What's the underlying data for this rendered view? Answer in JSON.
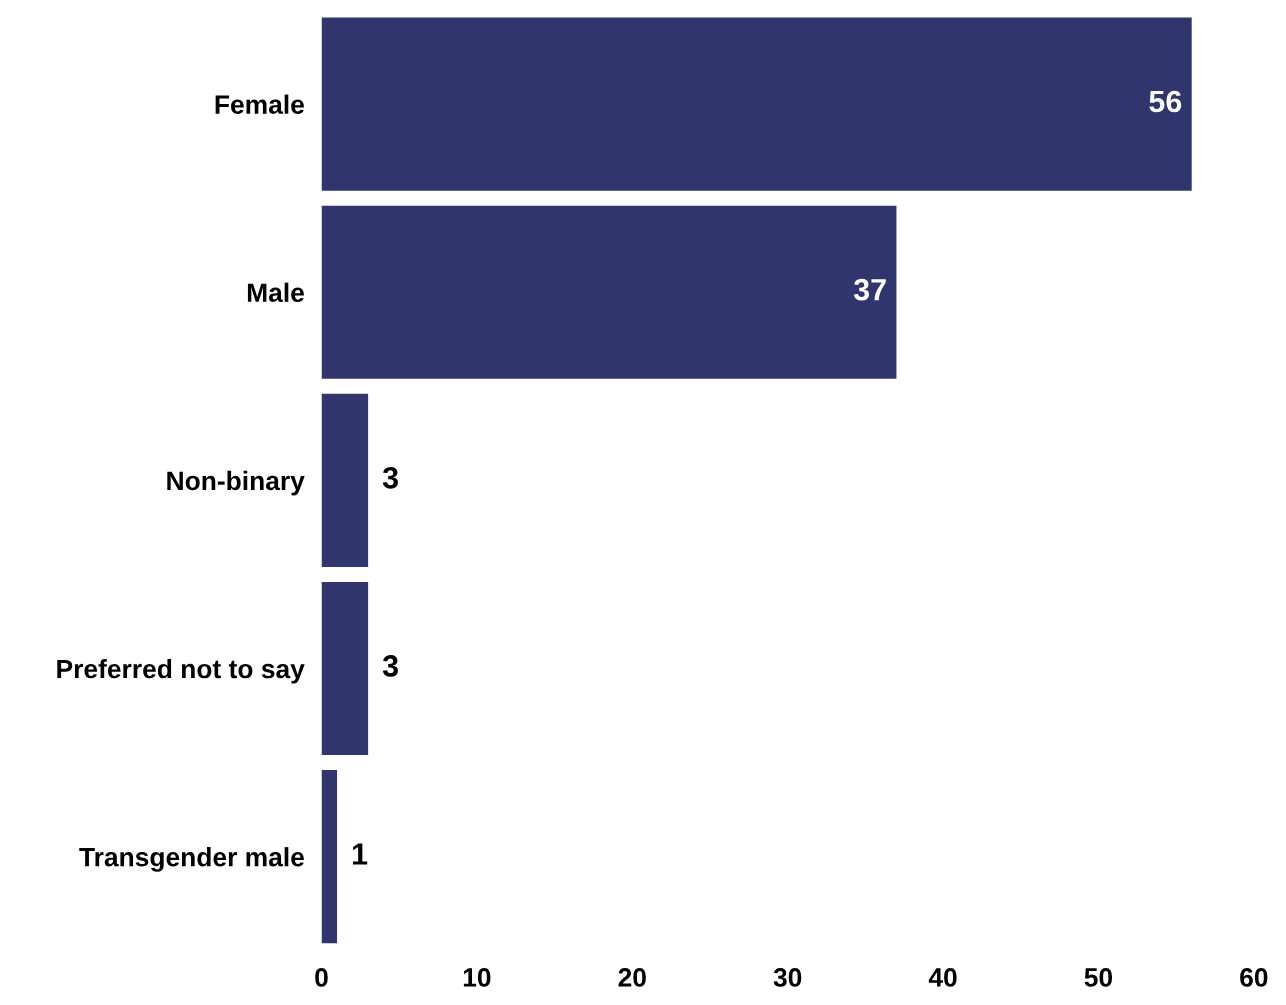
{
  "chart_data": {
    "type": "bar",
    "orientation": "horizontal",
    "categories": [
      "Female",
      "Male",
      "Non-binary",
      "Preferred not to say",
      "Transgender male"
    ],
    "values": [
      56,
      37,
      3,
      3,
      1
    ],
    "color": "#31356e",
    "xlim": [
      0,
      60
    ],
    "xticks": [
      0,
      10,
      20,
      30,
      40,
      50,
      60
    ],
    "data_labels": true,
    "grid": false,
    "legend": false
  }
}
